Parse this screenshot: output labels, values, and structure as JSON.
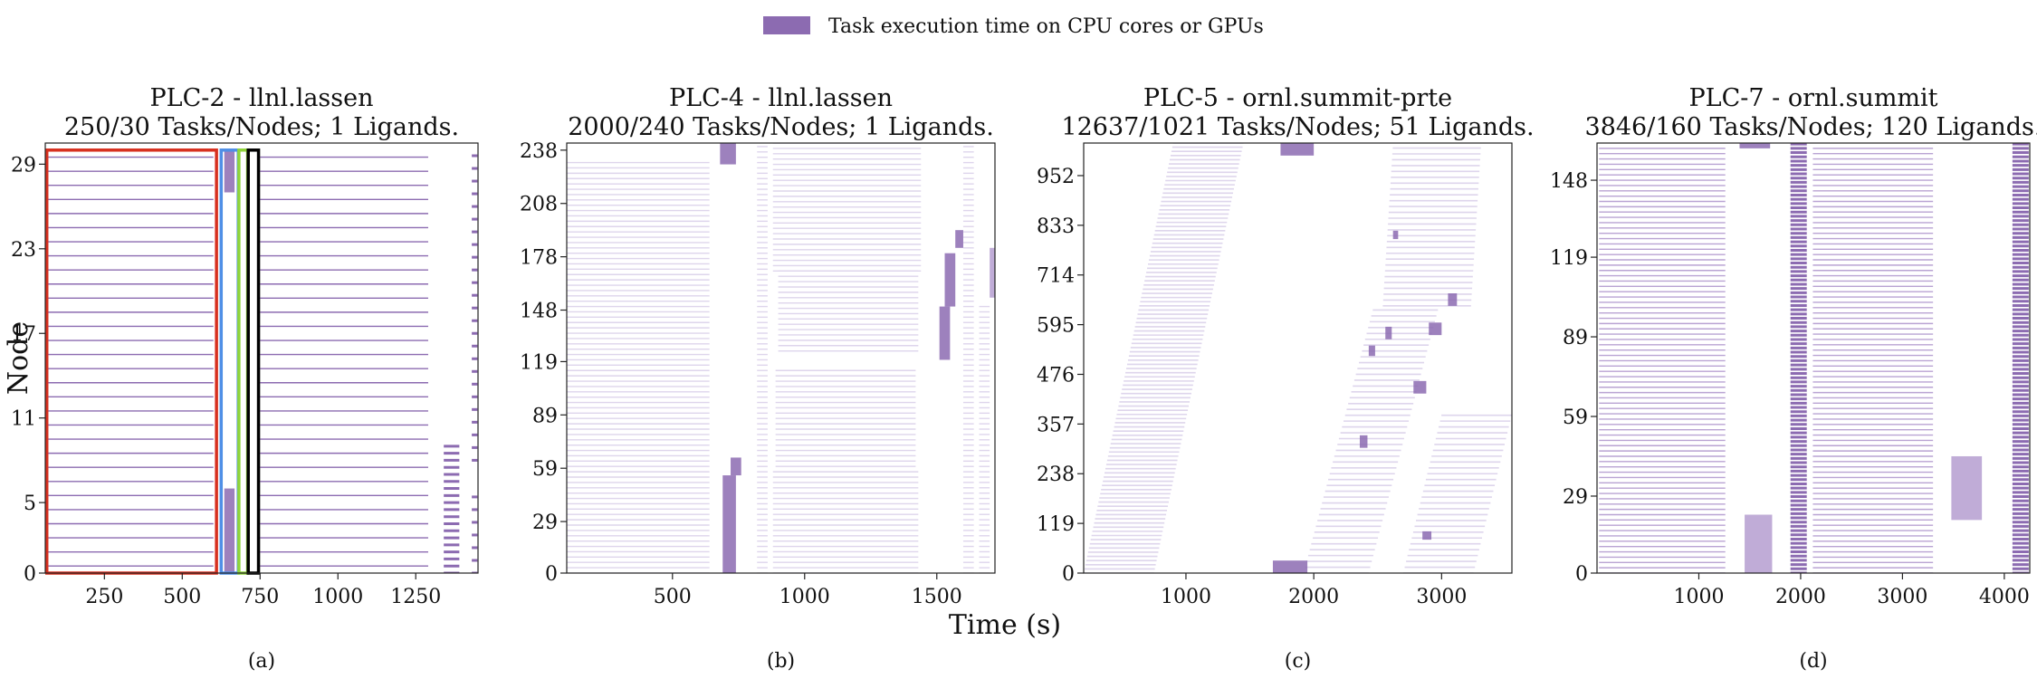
{
  "legend": {
    "label": "Task execution time on CPU cores or GPUs",
    "color": "#8c6bb1"
  },
  "xlabel": "Time (s)",
  "ylabel": "Node",
  "colors": {
    "task": "#8c6bb1",
    "task_light": "#b9a3d3",
    "task_faint": "#ded5ec",
    "box_red": "#d7301f",
    "box_blue": "#4f8fe6",
    "box_green": "#8fd43a",
    "box_black": "#000000"
  },
  "chart_data": [
    {
      "type": "gantt",
      "id": "a",
      "title": [
        "PLC-2 - llnl.lassen",
        "250/30 Tasks/Nodes; 1 Ligands."
      ],
      "caption": "(a)",
      "xlim": [
        60,
        1450
      ],
      "ylim": [
        0,
        30.5
      ],
      "xticks": [
        250,
        500,
        750,
        1000,
        1250
      ],
      "yticks": [
        0,
        5,
        11,
        17,
        23,
        29
      ],
      "show_ylabel": true,
      "blocks": [
        {
          "x0": 70,
          "x1": 600,
          "y0": 0.5,
          "y1": 29.5,
          "style": "lines",
          "step": 1,
          "shade": "mid"
        },
        {
          "x0": 750,
          "x1": 1290,
          "y0": 0.5,
          "y1": 29.5,
          "style": "lines",
          "step": 1,
          "shade": "mid"
        },
        {
          "x0": 635,
          "x1": 668,
          "y0": 0,
          "y1": 6,
          "style": "solid",
          "shade": "dark"
        },
        {
          "x0": 635,
          "x1": 668,
          "y0": 27,
          "y1": 30,
          "style": "solid",
          "shade": "dark"
        },
        {
          "x0": 1340,
          "x1": 1390,
          "y0": 0,
          "y1": 9,
          "style": "lines",
          "step": 0.5,
          "shade": "dark"
        },
        {
          "x0": 1430,
          "x1": 1448,
          "y0": 0,
          "y1": 6,
          "style": "lines",
          "step": 0.9,
          "shade": "dark"
        },
        {
          "x0": 1430,
          "x1": 1448,
          "y0": 8,
          "y1": 30,
          "style": "lines",
          "step": 0.9,
          "shade": "dark"
        }
      ],
      "annotation_boxes": [
        {
          "x0": 65,
          "x1": 610,
          "y0": 0,
          "y1": 30,
          "color": "box_red"
        },
        {
          "x0": 625,
          "x1": 680,
          "y0": 0,
          "y1": 30,
          "color": "box_blue"
        },
        {
          "x0": 682,
          "x1": 710,
          "y0": 0,
          "y1": 30,
          "color": "box_green"
        },
        {
          "x0": 712,
          "x1": 745,
          "y0": 0,
          "y1": 30,
          "color": "box_black"
        }
      ]
    },
    {
      "type": "gantt",
      "id": "b",
      "title": [
        "PLC-4 - llnl.lassen",
        "2000/240 Tasks/Nodes; 1 Ligands."
      ],
      "caption": "(b)",
      "xlim": [
        100,
        1720
      ],
      "ylim": [
        0,
        242
      ],
      "xticks": [
        500,
        1000,
        1500
      ],
      "yticks": [
        0,
        29,
        59,
        89,
        119,
        148,
        178,
        208,
        238
      ],
      "show_ylabel": false,
      "blocks": [
        {
          "x0": 100,
          "x1": 640,
          "y0": 0,
          "y1": 232,
          "style": "lines",
          "step": 3,
          "shade": "faint"
        },
        {
          "x0": 880,
          "x1": 1430,
          "y0": 0,
          "y1": 58,
          "style": "lines",
          "step": 3,
          "shade": "faint"
        },
        {
          "x0": 890,
          "x1": 1420,
          "y0": 60,
          "y1": 115,
          "style": "lines",
          "step": 3,
          "shade": "faint"
        },
        {
          "x0": 900,
          "x1": 1430,
          "y0": 125,
          "y1": 170,
          "style": "lines",
          "step": 3,
          "shade": "faint"
        },
        {
          "x0": 880,
          "x1": 1440,
          "y0": 170,
          "y1": 242,
          "style": "lines",
          "step": 3,
          "shade": "faint"
        },
        {
          "x0": 820,
          "x1": 860,
          "y0": 0,
          "y1": 242,
          "style": "lines",
          "step": 3,
          "shade": "faint"
        },
        {
          "x0": 1600,
          "x1": 1640,
          "y0": 0,
          "y1": 242,
          "style": "lines",
          "step": 3,
          "shade": "faint"
        },
        {
          "x0": 1660,
          "x1": 1700,
          "y0": 0,
          "y1": 150,
          "style": "lines",
          "step": 3,
          "shade": "faint"
        },
        {
          "x0": 690,
          "x1": 740,
          "y0": 0,
          "y1": 55,
          "style": "solid",
          "shade": "dark"
        },
        {
          "x0": 720,
          "x1": 760,
          "y0": 55,
          "y1": 65,
          "style": "solid",
          "shade": "dark"
        },
        {
          "x0": 680,
          "x1": 740,
          "y0": 230,
          "y1": 242,
          "style": "solid",
          "shade": "dark"
        },
        {
          "x0": 1510,
          "x1": 1550,
          "y0": 120,
          "y1": 150,
          "style": "solid",
          "shade": "dark"
        },
        {
          "x0": 1530,
          "x1": 1570,
          "y0": 150,
          "y1": 180,
          "style": "solid",
          "shade": "dark"
        },
        {
          "x0": 1570,
          "x1": 1600,
          "y0": 183,
          "y1": 193,
          "style": "solid",
          "shade": "dark"
        },
        {
          "x0": 1700,
          "x1": 1720,
          "y0": 155,
          "y1": 183,
          "style": "solid",
          "shade": "light"
        }
      ],
      "annotation_boxes": []
    },
    {
      "type": "gantt",
      "id": "c",
      "title": [
        "PLC-5 - ornl.summit-prte",
        "12637/1021 Tasks/Nodes; 51 Ligands."
      ],
      "caption": "(c)",
      "xlim": [
        200,
        3550
      ],
      "ylim": [
        0,
        1030
      ],
      "xticks": [
        1000,
        2000,
        3000
      ],
      "yticks": [
        0,
        119,
        238,
        357,
        476,
        595,
        714,
        833,
        952
      ],
      "show_ylabel": false,
      "blocks": [
        {
          "x0": 200,
          "x1": 750,
          "y0": 0,
          "y1": 1030,
          "style": "skew",
          "skew": 700,
          "step": 10,
          "shade": "faint"
        },
        {
          "x0": 1920,
          "x1": 2430,
          "y0": 0,
          "y1": 640,
          "style": "skew",
          "skew": 550,
          "step": 14,
          "shade": "faint"
        },
        {
          "x0": 2540,
          "x1": 3230,
          "y0": 640,
          "y1": 1030,
          "style": "skew",
          "skew": 80,
          "step": 14,
          "shade": "faint"
        },
        {
          "x0": 2700,
          "x1": 3250,
          "y0": 0,
          "y1": 380,
          "style": "skew",
          "skew": 300,
          "step": 14,
          "shade": "faint"
        },
        {
          "x0": 1680,
          "x1": 1950,
          "y0": 0,
          "y1": 30,
          "style": "solid",
          "shade": "dark"
        },
        {
          "x0": 1740,
          "x1": 2000,
          "y0": 1000,
          "y1": 1030,
          "style": "solid",
          "shade": "dark"
        },
        {
          "x0": 2360,
          "x1": 2420,
          "y0": 300,
          "y1": 330,
          "style": "solid",
          "shade": "dark"
        },
        {
          "x0": 2430,
          "x1": 2480,
          "y0": 520,
          "y1": 545,
          "style": "solid",
          "shade": "dark"
        },
        {
          "x0": 2560,
          "x1": 2610,
          "y0": 560,
          "y1": 590,
          "style": "solid",
          "shade": "dark"
        },
        {
          "x0": 2620,
          "x1": 2660,
          "y0": 800,
          "y1": 820,
          "style": "solid",
          "shade": "dark"
        },
        {
          "x0": 2780,
          "x1": 2880,
          "y0": 430,
          "y1": 460,
          "style": "solid",
          "shade": "dark"
        },
        {
          "x0": 2850,
          "x1": 2920,
          "y0": 80,
          "y1": 100,
          "style": "solid",
          "shade": "dark"
        },
        {
          "x0": 2900,
          "x1": 3000,
          "y0": 570,
          "y1": 600,
          "style": "solid",
          "shade": "dark"
        },
        {
          "x0": 3050,
          "x1": 3120,
          "y0": 640,
          "y1": 670,
          "style": "solid",
          "shade": "dark"
        }
      ],
      "annotation_boxes": []
    },
    {
      "type": "gantt",
      "id": "d",
      "title": [
        "PLC-7 - ornl.summit",
        "3846/160 Tasks/Nodes; 120 Ligands."
      ],
      "caption": "(d)",
      "xlim": [
        0,
        4250
      ],
      "ylim": [
        0,
        162
      ],
      "xticks": [
        1000,
        2000,
        3000,
        4000
      ],
      "yticks": [
        0,
        29,
        59,
        89,
        119,
        148
      ],
      "show_ylabel": false,
      "blocks": [
        {
          "x0": 20,
          "x1": 1260,
          "y0": 0,
          "y1": 160,
          "style": "lines",
          "step": 2,
          "shade": "light"
        },
        {
          "x0": 2120,
          "x1": 3300,
          "y0": 0,
          "y1": 160,
          "style": "lines",
          "step": 2,
          "shade": "light"
        },
        {
          "x0": 1900,
          "x1": 2060,
          "y0": 0,
          "y1": 162,
          "style": "lines",
          "step": 1.6,
          "shade": "dark"
        },
        {
          "x0": 4080,
          "x1": 4240,
          "y0": 0,
          "y1": 162,
          "style": "lines",
          "step": 1.6,
          "shade": "dark"
        },
        {
          "x0": 1450,
          "x1": 1720,
          "y0": 0,
          "y1": 22,
          "style": "solid",
          "shade": "light"
        },
        {
          "x0": 3480,
          "x1": 3780,
          "y0": 20,
          "y1": 44,
          "style": "solid",
          "shade": "light"
        },
        {
          "x0": 1400,
          "x1": 1700,
          "y0": 160,
          "y1": 162,
          "style": "solid",
          "shade": "dark"
        }
      ],
      "annotation_boxes": []
    }
  ]
}
